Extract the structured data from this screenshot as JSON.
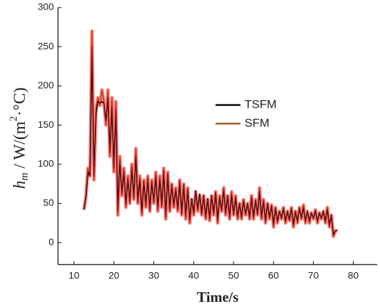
{
  "chart_data": {
    "type": "line",
    "xlabel": "Time/s",
    "ylabel": {
      "symbol": "h",
      "subscript": "m",
      "unit": " / W/(m",
      "superscript": "2",
      "tail": "·°C)"
    },
    "xlim": [
      6,
      86
    ],
    "xticks": [
      10,
      20,
      30,
      40,
      50,
      60,
      70,
      80
    ],
    "ylim": [
      -28,
      300
    ],
    "yticks": [
      0,
      50,
      100,
      150,
      200,
      250,
      300
    ],
    "legend": "center-right",
    "glow_color": "#ff1a1a",
    "x": [
      12.5,
      13,
      13.5,
      14,
      14.5,
      15,
      15.5,
      16,
      16.5,
      17,
      17.5,
      18,
      18.5,
      19,
      19.5,
      20,
      20.5,
      21,
      21.5,
      22,
      22.5,
      23,
      23.5,
      24,
      24.5,
      25,
      25.5,
      26,
      26.5,
      27,
      27.5,
      28,
      28.5,
      29,
      29.5,
      30,
      30.5,
      31,
      31.5,
      32,
      32.5,
      33,
      33.5,
      34,
      34.5,
      35,
      35.5,
      36,
      36.5,
      37,
      37.5,
      38,
      38.5,
      39,
      39.5,
      40,
      40.5,
      41,
      41.5,
      42,
      42.5,
      43,
      43.5,
      44,
      44.5,
      45,
      45.5,
      46,
      46.5,
      47,
      47.5,
      48,
      48.5,
      49,
      49.5,
      50,
      50.5,
      51,
      51.5,
      52,
      52.5,
      53,
      53.5,
      54,
      54.5,
      55,
      55.5,
      56,
      56.5,
      57,
      57.5,
      58,
      58.5,
      59,
      59.5,
      60,
      60.5,
      61,
      61.5,
      62,
      62.5,
      63,
      63.5,
      64,
      64.5,
      65,
      65.5,
      66,
      66.5,
      67,
      67.5,
      68,
      68.5,
      69,
      69.5,
      70,
      70.5,
      71,
      71.5,
      72,
      72.5,
      73,
      73.5,
      74,
      74.5,
      75,
      75.5,
      76
    ],
    "series": [
      {
        "name": "TSFM",
        "color": "#000000",
        "values": [
          42,
          58,
          90,
          85,
          250,
          85,
          165,
          180,
          178,
          180,
          178,
          155,
          185,
          115,
          175,
          95,
          170,
          40,
          105,
          62,
          92,
          48,
          82,
          52,
          96,
          57,
          112,
          52,
          82,
          38,
          78,
          47,
          82,
          42,
          78,
          52,
          86,
          43,
          82,
          47,
          92,
          33,
          88,
          42,
          74,
          47,
          68,
          42,
          78,
          37,
          74,
          33,
          68,
          28,
          56,
          37,
          66,
          42,
          62,
          37,
          60,
          32,
          56,
          30,
          60,
          37,
          64,
          28,
          58,
          41,
          68,
          37,
          60,
          32,
          62,
          36,
          58,
          32,
          50,
          32,
          54,
          36,
          50,
          32,
          58,
          32,
          54,
          36,
          66,
          32,
          54,
          27,
          50,
          32,
          47,
          23,
          44,
          27,
          40,
          31,
          44,
          27,
          40,
          29,
          44,
          22,
          40,
          27,
          44,
          31,
          46,
          27,
          40,
          27,
          38,
          31,
          41,
          27,
          38,
          31,
          40,
          27,
          43,
          22,
          35,
          10,
          15,
          16
        ]
      },
      {
        "name": "SFM",
        "color": "#9b5a1c",
        "values": [
          42,
          60,
          95,
          85,
          270,
          80,
          170,
          185,
          175,
          195,
          180,
          150,
          195,
          110,
          185,
          90,
          180,
          35,
          110,
          60,
          95,
          45,
          85,
          50,
          100,
          55,
          120,
          50,
          85,
          35,
          80,
          45,
          85,
          40,
          80,
          50,
          90,
          40,
          85,
          45,
          95,
          30,
          90,
          40,
          75,
          45,
          70,
          40,
          80,
          35,
          75,
          30,
          70,
          25,
          55,
          35,
          65,
          40,
          60,
          35,
          60,
          30,
          55,
          28,
          60,
          35,
          65,
          25,
          60,
          40,
          70,
          35,
          60,
          30,
          65,
          35,
          60,
          30,
          50,
          30,
          55,
          35,
          50,
          30,
          60,
          30,
          55,
          35,
          70,
          30,
          55,
          25,
          50,
          30,
          48,
          20,
          45,
          25,
          40,
          30,
          45,
          25,
          40,
          28,
          45,
          20,
          40,
          25,
          45,
          30,
          48,
          25,
          40,
          25,
          38,
          30,
          42,
          25,
          38,
          30,
          40,
          25,
          45,
          20,
          35,
          8,
          15,
          15
        ]
      }
    ]
  }
}
